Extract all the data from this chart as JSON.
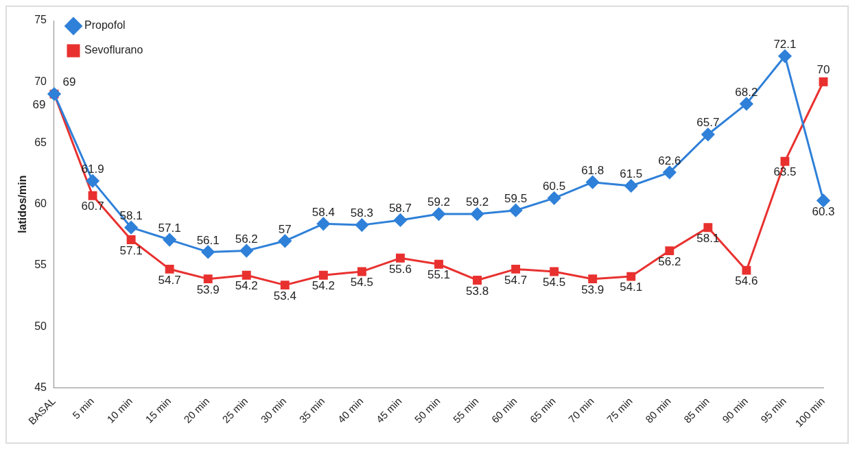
{
  "chart_data": {
    "type": "line",
    "ylabel": "latidos/min",
    "categories": [
      "BASAL",
      "5 min",
      "10 min",
      "15 min",
      "20 min",
      "25 min",
      "30 min",
      "35 min",
      "40 min",
      "45 min",
      "50 min",
      "55 min",
      "60 min",
      "65 min",
      "70 min",
      "75 min",
      "80 min",
      "85 min",
      "90 min",
      "95 min",
      "100 min"
    ],
    "series": [
      {
        "name": "Propofol",
        "color": "#2f80d8",
        "marker": "diamond",
        "values": [
          69,
          61.9,
          58.1,
          57.1,
          56.1,
          56.2,
          57,
          58.4,
          58.3,
          58.7,
          59.2,
          59.2,
          59.5,
          60.5,
          61.8,
          61.5,
          62.6,
          65.7,
          68.2,
          72.1,
          60.3
        ]
      },
      {
        "name": "Sevoflurano",
        "color": "#e8312f",
        "marker": "square",
        "values": [
          69,
          60.7,
          57.1,
          54.7,
          53.9,
          54.2,
          53.4,
          54.2,
          54.5,
          55.6,
          55.1,
          53.8,
          54.7,
          54.5,
          53.9,
          54.1,
          56.2,
          58.1,
          54.6,
          63.5,
          70
        ]
      }
    ],
    "ylim": [
      45,
      75
    ],
    "yticks": [
      45,
      50,
      55,
      60,
      65,
      70,
      75
    ],
    "grid": false,
    "legend": "top left",
    "data_labels": true,
    "line_style": "solid"
  }
}
